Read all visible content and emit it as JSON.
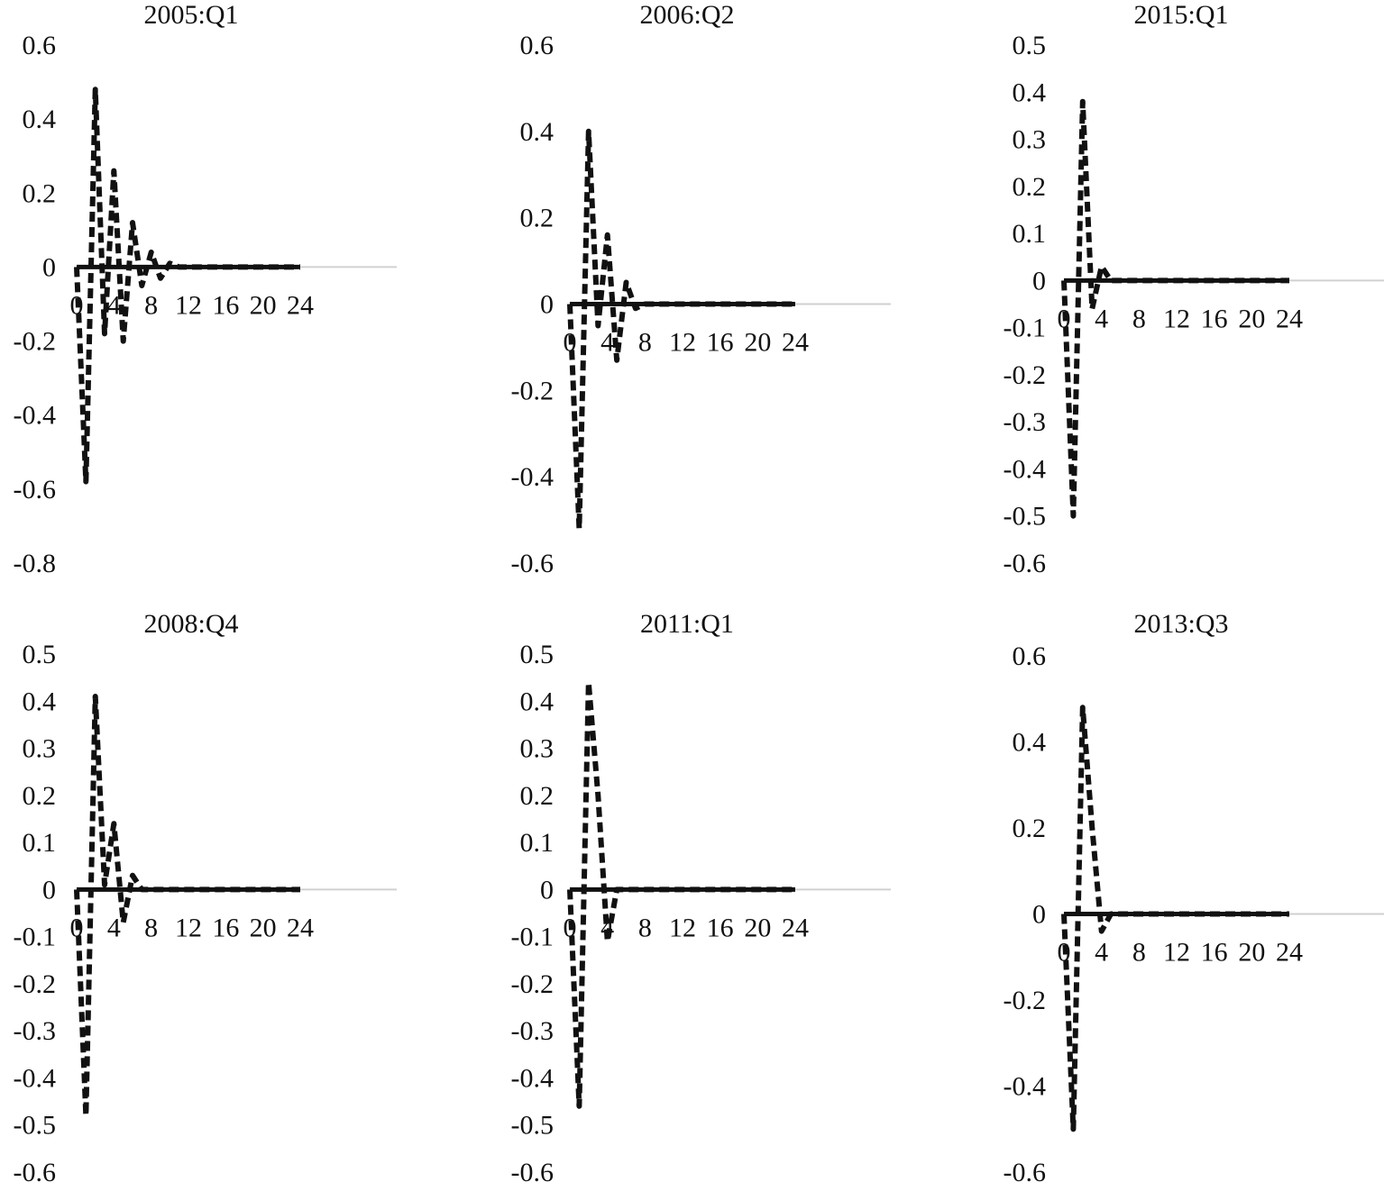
{
  "colors": {
    "impulse_line": "#111111",
    "zero_line": "#111111",
    "axis_extension": "#d0d0d0",
    "background": "#ffffff"
  },
  "chart_data": [
    {
      "type": "line",
      "title": "2005:Q1",
      "x_ticks": [
        "0",
        "4",
        "8",
        "12",
        "16",
        "20",
        "24"
      ],
      "y_ticks": [
        "0.6",
        "0.4",
        "0.2",
        "0",
        "-0.2",
        "-0.4",
        "-0.6",
        "-0.8"
      ],
      "ylim": [
        -0.8,
        0.6
      ],
      "xlim": [
        0,
        24
      ],
      "series": [
        {
          "style": "dashed",
          "x": [
            0,
            1,
            2,
            3,
            4,
            5,
            6,
            7,
            8,
            9,
            10,
            11,
            12,
            13,
            14,
            15,
            16,
            17,
            18,
            19,
            20,
            21,
            22,
            23,
            24
          ],
          "values": [
            0,
            -0.58,
            0.48,
            -0.18,
            0.26,
            -0.2,
            0.12,
            -0.05,
            0.04,
            -0.03,
            0.01,
            0,
            0,
            0,
            0,
            0,
            0,
            0,
            0,
            0,
            0,
            0,
            0,
            0,
            0
          ]
        }
      ],
      "grid": false,
      "legend": false
    },
    {
      "type": "line",
      "title": "2006:Q2",
      "x_ticks": [
        "0",
        "4",
        "8",
        "12",
        "16",
        "20",
        "24"
      ],
      "y_ticks": [
        "0.6",
        "0.4",
        "0.2",
        "0",
        "-0.2",
        "-0.4",
        "-0.6"
      ],
      "ylim": [
        -0.6,
        0.6
      ],
      "xlim": [
        0,
        24
      ],
      "series": [
        {
          "style": "dashed",
          "x": [
            0,
            1,
            2,
            3,
            4,
            5,
            6,
            7,
            8,
            9,
            10,
            11,
            12,
            13,
            14,
            15,
            16,
            17,
            18,
            19,
            20,
            21,
            22,
            23,
            24
          ],
          "values": [
            0,
            -0.52,
            0.4,
            -0.05,
            0.16,
            -0.13,
            0.05,
            -0.01,
            0,
            0,
            0,
            0,
            0,
            0,
            0,
            0,
            0,
            0,
            0,
            0,
            0,
            0,
            0,
            0,
            0
          ]
        }
      ],
      "grid": false,
      "legend": false
    },
    {
      "type": "line",
      "title": "2015:Q1",
      "x_ticks": [
        "0",
        "4",
        "8",
        "12",
        "16",
        "20",
        "24"
      ],
      "y_ticks": [
        "0.5",
        "0.4",
        "0.3",
        "0.2",
        "0.1",
        "0",
        "-0.1",
        "-0.2",
        "-0.3",
        "-0.4",
        "-0.5",
        "-0.6"
      ],
      "ylim": [
        -0.6,
        0.5
      ],
      "xlim": [
        0,
        24
      ],
      "series": [
        {
          "style": "dashed",
          "x": [
            0,
            1,
            2,
            3,
            4,
            5,
            6,
            7,
            8,
            9,
            10,
            11,
            12,
            13,
            14,
            15,
            16,
            17,
            18,
            19,
            20,
            21,
            22,
            23,
            24
          ],
          "values": [
            0,
            -0.5,
            0.38,
            -0.06,
            0.03,
            0,
            0,
            0,
            0,
            0,
            0,
            0,
            0,
            0,
            0,
            0,
            0,
            0,
            0,
            0,
            0,
            0,
            0,
            0,
            0
          ]
        }
      ],
      "grid": false,
      "legend": false
    },
    {
      "type": "line",
      "title": "2008:Q4",
      "x_ticks": [
        "0",
        "4",
        "8",
        "12",
        "16",
        "20",
        "24"
      ],
      "y_ticks": [
        "0.5",
        "0.4",
        "0.3",
        "0.2",
        "0.1",
        "0",
        "-0.1",
        "-0.2",
        "-0.3",
        "-0.4",
        "-0.5",
        "-0.6"
      ],
      "ylim": [
        -0.6,
        0.5
      ],
      "xlim": [
        0,
        24
      ],
      "series": [
        {
          "style": "dashed",
          "x": [
            0,
            1,
            2,
            3,
            4,
            5,
            6,
            7,
            8,
            9,
            10,
            11,
            12,
            13,
            14,
            15,
            16,
            17,
            18,
            19,
            20,
            21,
            22,
            23,
            24
          ],
          "values": [
            0,
            -0.48,
            0.41,
            0.01,
            0.14,
            -0.07,
            0.03,
            0,
            0,
            0,
            0,
            0,
            0,
            0,
            0,
            0,
            0,
            0,
            0,
            0,
            0,
            0,
            0,
            0,
            0
          ]
        }
      ],
      "grid": false,
      "legend": false
    },
    {
      "type": "line",
      "title": "2011:Q1",
      "x_ticks": [
        "0",
        "4",
        "8",
        "12",
        "16",
        "20",
        "24"
      ],
      "y_ticks": [
        "0.5",
        "0.4",
        "0.3",
        "0.2",
        "0.1",
        "0",
        "-0.1",
        "-0.2",
        "-0.3",
        "-0.4",
        "-0.5",
        "-0.6"
      ],
      "ylim": [
        -0.6,
        0.5
      ],
      "xlim": [
        0,
        24
      ],
      "series": [
        {
          "style": "dashed",
          "x": [
            0,
            1,
            2,
            3,
            4,
            5,
            6,
            7,
            8,
            9,
            10,
            11,
            12,
            13,
            14,
            15,
            16,
            17,
            18,
            19,
            20,
            21,
            22,
            23,
            24
          ],
          "values": [
            0,
            -0.46,
            0.44,
            0.2,
            -0.11,
            0,
            0,
            0,
            0,
            0,
            0,
            0,
            0,
            0,
            0,
            0,
            0,
            0,
            0,
            0,
            0,
            0,
            0,
            0,
            0
          ]
        }
      ],
      "grid": false,
      "legend": false
    },
    {
      "type": "line",
      "title": "2013:Q3",
      "x_ticks": [
        "0",
        "4",
        "8",
        "12",
        "16",
        "20",
        "24"
      ],
      "y_ticks": [
        "0.6",
        "0.4",
        "0.2",
        "0",
        "-0.2",
        "-0.4",
        "-0.6"
      ],
      "ylim": [
        -0.6,
        0.6
      ],
      "xlim": [
        0,
        24
      ],
      "series": [
        {
          "style": "dashed",
          "x": [
            0,
            1,
            2,
            3,
            4,
            5,
            6,
            7,
            8,
            9,
            10,
            11,
            12,
            13,
            14,
            15,
            16,
            17,
            18,
            19,
            20,
            21,
            22,
            23,
            24
          ],
          "values": [
            0,
            -0.5,
            0.48,
            0.2,
            -0.04,
            0,
            0,
            0,
            0,
            0,
            0,
            0,
            0,
            0,
            0,
            0,
            0,
            0,
            0,
            0,
            0,
            0,
            0,
            0,
            0
          ]
        }
      ],
      "grid": false,
      "legend": false
    }
  ]
}
